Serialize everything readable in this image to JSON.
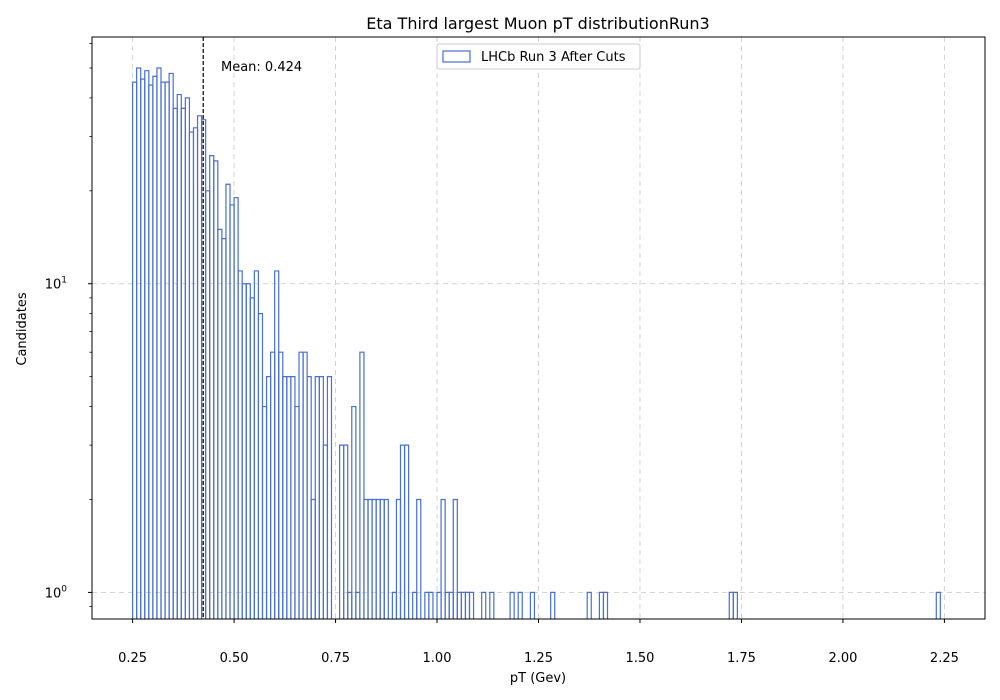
{
  "chart_data": {
    "type": "histogram",
    "title": "Eta Third largest Muon pT distributionRun3",
    "xlabel": "pT (Gev)",
    "ylabel": "Candidates",
    "xlim": [
      0.15,
      2.35
    ],
    "ylim": [
      0.82,
      63
    ],
    "yscale": "log",
    "grid": true,
    "legend_position": "top-center",
    "series_color": "#4a6fd3",
    "x_ticks": [
      {
        "value": 0.25,
        "label": "0.25"
      },
      {
        "value": 0.5,
        "label": "0.50"
      },
      {
        "value": 0.75,
        "label": "0.75"
      },
      {
        "value": 1.0,
        "label": "1.00"
      },
      {
        "value": 1.25,
        "label": "1.25"
      },
      {
        "value": 1.5,
        "label": "1.50"
      },
      {
        "value": 1.75,
        "label": "1.75"
      },
      {
        "value": 2.0,
        "label": "2.00"
      },
      {
        "value": 2.25,
        "label": "2.25"
      }
    ],
    "y_ticks": [
      {
        "value": 1,
        "base": "10",
        "exp": "0"
      },
      {
        "value": 10,
        "base": "10",
        "exp": "1"
      }
    ],
    "series": [
      {
        "name": "LHCb Run 3 After Cuts",
        "bin_width": 0.01,
        "bins": [
          [
            0.25,
            45
          ],
          [
            0.26,
            50
          ],
          [
            0.27,
            46
          ],
          [
            0.28,
            49
          ],
          [
            0.29,
            44
          ],
          [
            0.3,
            47
          ],
          [
            0.31,
            50
          ],
          [
            0.32,
            45
          ],
          [
            0.33,
            45
          ],
          [
            0.34,
            48
          ],
          [
            0.35,
            37
          ],
          [
            0.36,
            41
          ],
          [
            0.37,
            37
          ],
          [
            0.38,
            40
          ],
          [
            0.39,
            31
          ],
          [
            0.4,
            32
          ],
          [
            0.41,
            35
          ],
          [
            0.42,
            34
          ],
          [
            0.43,
            20
          ],
          [
            0.44,
            26
          ],
          [
            0.45,
            25
          ],
          [
            0.46,
            15
          ],
          [
            0.47,
            14
          ],
          [
            0.48,
            21
          ],
          [
            0.49,
            18
          ],
          [
            0.5,
            19
          ],
          [
            0.51,
            11
          ],
          [
            0.52,
            10
          ],
          [
            0.53,
            10
          ],
          [
            0.54,
            9
          ],
          [
            0.55,
            11
          ],
          [
            0.56,
            8
          ],
          [
            0.57,
            4
          ],
          [
            0.58,
            5
          ],
          [
            0.59,
            6
          ],
          [
            0.6,
            11
          ],
          [
            0.61,
            6
          ],
          [
            0.62,
            5
          ],
          [
            0.63,
            5
          ],
          [
            0.64,
            5
          ],
          [
            0.65,
            4
          ],
          [
            0.66,
            6
          ],
          [
            0.67,
            6
          ],
          [
            0.68,
            5
          ],
          [
            0.69,
            2
          ],
          [
            0.7,
            5
          ],
          [
            0.71,
            5
          ],
          [
            0.72,
            3
          ],
          [
            0.73,
            5
          ],
          [
            0.76,
            3
          ],
          [
            0.77,
            3
          ],
          [
            0.78,
            1
          ],
          [
            0.79,
            4
          ],
          [
            0.8,
            1
          ],
          [
            0.81,
            6
          ],
          [
            0.82,
            2
          ],
          [
            0.83,
            2
          ],
          [
            0.84,
            2
          ],
          [
            0.85,
            2
          ],
          [
            0.86,
            2
          ],
          [
            0.87,
            2
          ],
          [
            0.89,
            1
          ],
          [
            0.9,
            2
          ],
          [
            0.91,
            3
          ],
          [
            0.92,
            3
          ],
          [
            0.94,
            1
          ],
          [
            0.95,
            2
          ],
          [
            0.97,
            1
          ],
          [
            0.98,
            1
          ],
          [
            1.0,
            1
          ],
          [
            1.01,
            2
          ],
          [
            1.02,
            1
          ],
          [
            1.03,
            1
          ],
          [
            1.04,
            2
          ],
          [
            1.05,
            1
          ],
          [
            1.06,
            1
          ],
          [
            1.07,
            1
          ],
          [
            1.08,
            1
          ],
          [
            1.11,
            1
          ],
          [
            1.13,
            1
          ],
          [
            1.18,
            1
          ],
          [
            1.2,
            1
          ],
          [
            1.23,
            1
          ],
          [
            1.28,
            1
          ],
          [
            1.37,
            1
          ],
          [
            1.4,
            1
          ],
          [
            1.41,
            1
          ],
          [
            1.72,
            1
          ],
          [
            1.73,
            1
          ],
          [
            2.23,
            1
          ]
        ]
      }
    ],
    "mean": {
      "value": 0.424,
      "label": "Mean: 0.424"
    }
  }
}
